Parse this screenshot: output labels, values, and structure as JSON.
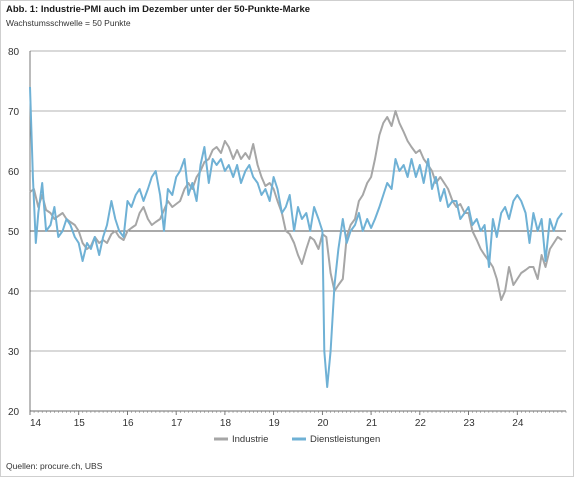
{
  "title": "Abb. 1: Industrie-PMI auch im Dezember unter der 50-Punkte-Marke",
  "subtitle": "Wachstumsschwelle = 50 Punkte",
  "source": "Quellen: procure.ch, UBS",
  "chart_data": {
    "type": "line",
    "title": "Abb. 1: Industrie-PMI auch im Dezember unter der 50-Punkte-Marke",
    "subtitle": "Wachstumsschwelle = 50 Punkte",
    "xlabel": "",
    "ylabel": "",
    "ylim": [
      20,
      80
    ],
    "yticks": [
      20,
      30,
      40,
      50,
      60,
      70,
      80
    ],
    "xlim": [
      2014,
      2025
    ],
    "xticks": [
      "14",
      "15",
      "16",
      "17",
      "18",
      "19",
      "20",
      "21",
      "22",
      "23",
      "24"
    ],
    "grid": "horizontal",
    "legend": "bottom-center",
    "series": [
      {
        "name": "Industrie",
        "color": "#a6a6a6",
        "points": [
          [
            2014.0,
            56.5
          ],
          [
            2014.08,
            57
          ],
          [
            2014.17,
            54
          ],
          [
            2014.25,
            56
          ],
          [
            2014.33,
            53.5
          ],
          [
            2014.42,
            53
          ],
          [
            2014.5,
            52
          ],
          [
            2014.58,
            52.5
          ],
          [
            2014.67,
            53
          ],
          [
            2014.75,
            52
          ],
          [
            2014.83,
            51.5
          ],
          [
            2014.92,
            51
          ],
          [
            2015.0,
            50
          ],
          [
            2015.08,
            48
          ],
          [
            2015.17,
            47
          ],
          [
            2015.25,
            47.5
          ],
          [
            2015.33,
            49
          ],
          [
            2015.42,
            48
          ],
          [
            2015.5,
            48.5
          ],
          [
            2015.58,
            48
          ],
          [
            2015.67,
            49.5
          ],
          [
            2015.75,
            50
          ],
          [
            2015.83,
            49
          ],
          [
            2015.92,
            48.5
          ],
          [
            2016.0,
            50
          ],
          [
            2016.08,
            50.5
          ],
          [
            2016.17,
            51
          ],
          [
            2016.25,
            53
          ],
          [
            2016.33,
            54
          ],
          [
            2016.42,
            52
          ],
          [
            2016.5,
            51
          ],
          [
            2016.58,
            51.5
          ],
          [
            2016.67,
            52
          ],
          [
            2016.75,
            53.5
          ],
          [
            2016.83,
            55
          ],
          [
            2016.92,
            54
          ],
          [
            2017.0,
            54.5
          ],
          [
            2017.08,
            55
          ],
          [
            2017.17,
            57
          ],
          [
            2017.25,
            58
          ],
          [
            2017.33,
            57
          ],
          [
            2017.42,
            59
          ],
          [
            2017.5,
            60
          ],
          [
            2017.58,
            61.5
          ],
          [
            2017.67,
            62
          ],
          [
            2017.75,
            63.5
          ],
          [
            2017.83,
            64
          ],
          [
            2017.92,
            63
          ],
          [
            2018.0,
            65
          ],
          [
            2018.08,
            64
          ],
          [
            2018.17,
            62
          ],
          [
            2018.25,
            63.5
          ],
          [
            2018.33,
            62
          ],
          [
            2018.42,
            63
          ],
          [
            2018.5,
            62
          ],
          [
            2018.58,
            64.5
          ],
          [
            2018.67,
            61
          ],
          [
            2018.75,
            59
          ],
          [
            2018.83,
            57.5
          ],
          [
            2018.92,
            58
          ],
          [
            2019.0,
            57
          ],
          [
            2019.08,
            55
          ],
          [
            2019.17,
            53
          ],
          [
            2019.25,
            50
          ],
          [
            2019.33,
            49.5
          ],
          [
            2019.42,
            48
          ],
          [
            2019.5,
            46
          ],
          [
            2019.58,
            44.5
          ],
          [
            2019.67,
            47
          ],
          [
            2019.75,
            49
          ],
          [
            2019.83,
            48.5
          ],
          [
            2019.92,
            47
          ],
          [
            2020.0,
            49.5
          ],
          [
            2020.08,
            49
          ],
          [
            2020.17,
            43
          ],
          [
            2020.25,
            40
          ],
          [
            2020.33,
            41
          ],
          [
            2020.42,
            42
          ],
          [
            2020.5,
            49
          ],
          [
            2020.58,
            51
          ],
          [
            2020.67,
            52
          ],
          [
            2020.75,
            55
          ],
          [
            2020.83,
            56
          ],
          [
            2020.92,
            58
          ],
          [
            2021.0,
            59
          ],
          [
            2021.08,
            62
          ],
          [
            2021.17,
            66
          ],
          [
            2021.25,
            68
          ],
          [
            2021.33,
            69
          ],
          [
            2021.42,
            67.5
          ],
          [
            2021.5,
            70
          ],
          [
            2021.58,
            68
          ],
          [
            2021.67,
            66.5
          ],
          [
            2021.75,
            65
          ],
          [
            2021.83,
            64
          ],
          [
            2021.92,
            63
          ],
          [
            2022.0,
            63.5
          ],
          [
            2022.08,
            62
          ],
          [
            2022.17,
            61
          ],
          [
            2022.25,
            60
          ],
          [
            2022.33,
            58
          ],
          [
            2022.42,
            59
          ],
          [
            2022.5,
            58
          ],
          [
            2022.58,
            57
          ],
          [
            2022.67,
            55
          ],
          [
            2022.75,
            54
          ],
          [
            2022.83,
            54.5
          ],
          [
            2022.92,
            53
          ],
          [
            2023.0,
            53
          ],
          [
            2023.08,
            50
          ],
          [
            2023.17,
            48.5
          ],
          [
            2023.25,
            47
          ],
          [
            2023.33,
            46
          ],
          [
            2023.42,
            45
          ],
          [
            2023.5,
            44
          ],
          [
            2023.58,
            42
          ],
          [
            2023.67,
            38.5
          ],
          [
            2023.75,
            40
          ],
          [
            2023.83,
            44
          ],
          [
            2023.92,
            41
          ],
          [
            2024.0,
            42
          ],
          [
            2024.08,
            43
          ],
          [
            2024.17,
            43.5
          ],
          [
            2024.25,
            44
          ],
          [
            2024.33,
            44
          ],
          [
            2024.42,
            42
          ],
          [
            2024.5,
            46
          ],
          [
            2024.58,
            44
          ],
          [
            2024.67,
            47
          ],
          [
            2024.75,
            48
          ],
          [
            2024.83,
            49
          ],
          [
            2024.92,
            48.5
          ]
        ]
      },
      {
        "name": "Dienstleistungen",
        "color": "#6fb1d5",
        "points": [
          [
            2014.0,
            74
          ],
          [
            2014.06,
            59
          ],
          [
            2014.12,
            48
          ],
          [
            2014.17,
            53
          ],
          [
            2014.25,
            58
          ],
          [
            2014.33,
            50
          ],
          [
            2014.42,
            51
          ],
          [
            2014.5,
            54
          ],
          [
            2014.58,
            49
          ],
          [
            2014.67,
            50
          ],
          [
            2014.75,
            52
          ],
          [
            2014.83,
            51
          ],
          [
            2014.92,
            49
          ],
          [
            2015.0,
            48
          ],
          [
            2015.08,
            45
          ],
          [
            2015.17,
            48
          ],
          [
            2015.25,
            47
          ],
          [
            2015.33,
            49
          ],
          [
            2015.42,
            46
          ],
          [
            2015.5,
            49
          ],
          [
            2015.58,
            51
          ],
          [
            2015.67,
            55
          ],
          [
            2015.75,
            52
          ],
          [
            2015.83,
            50
          ],
          [
            2015.92,
            49
          ],
          [
            2016.0,
            55
          ],
          [
            2016.08,
            54
          ],
          [
            2016.17,
            56
          ],
          [
            2016.25,
            57
          ],
          [
            2016.33,
            55
          ],
          [
            2016.42,
            57
          ],
          [
            2016.5,
            59
          ],
          [
            2016.58,
            60
          ],
          [
            2016.67,
            56
          ],
          [
            2016.75,
            50
          ],
          [
            2016.83,
            57
          ],
          [
            2016.92,
            56
          ],
          [
            2017.0,
            59
          ],
          [
            2017.08,
            60
          ],
          [
            2017.17,
            62
          ],
          [
            2017.25,
            56
          ],
          [
            2017.33,
            58
          ],
          [
            2017.42,
            55
          ],
          [
            2017.5,
            61
          ],
          [
            2017.58,
            64
          ],
          [
            2017.67,
            58
          ],
          [
            2017.75,
            62
          ],
          [
            2017.83,
            61
          ],
          [
            2017.92,
            62
          ],
          [
            2018.0,
            60
          ],
          [
            2018.08,
            61
          ],
          [
            2018.17,
            59
          ],
          [
            2018.25,
            61
          ],
          [
            2018.33,
            58
          ],
          [
            2018.42,
            60
          ],
          [
            2018.5,
            61
          ],
          [
            2018.58,
            59
          ],
          [
            2018.67,
            58
          ],
          [
            2018.75,
            56
          ],
          [
            2018.83,
            57
          ],
          [
            2018.92,
            55
          ],
          [
            2019.0,
            59
          ],
          [
            2019.08,
            57
          ],
          [
            2019.17,
            53
          ],
          [
            2019.25,
            54
          ],
          [
            2019.33,
            56
          ],
          [
            2019.42,
            50
          ],
          [
            2019.5,
            54
          ],
          [
            2019.58,
            52
          ],
          [
            2019.67,
            53
          ],
          [
            2019.75,
            50
          ],
          [
            2019.83,
            54
          ],
          [
            2019.92,
            52
          ],
          [
            2020.0,
            50
          ],
          [
            2020.04,
            30
          ],
          [
            2020.1,
            24
          ],
          [
            2020.17,
            30
          ],
          [
            2020.25,
            41
          ],
          [
            2020.33,
            47
          ],
          [
            2020.42,
            52
          ],
          [
            2020.5,
            48
          ],
          [
            2020.58,
            50
          ],
          [
            2020.67,
            51
          ],
          [
            2020.75,
            53
          ],
          [
            2020.83,
            50
          ],
          [
            2020.92,
            52
          ],
          [
            2021.0,
            50.5
          ],
          [
            2021.08,
            52
          ],
          [
            2021.17,
            54
          ],
          [
            2021.25,
            56
          ],
          [
            2021.33,
            58
          ],
          [
            2021.42,
            57
          ],
          [
            2021.5,
            62
          ],
          [
            2021.58,
            60
          ],
          [
            2021.67,
            61
          ],
          [
            2021.75,
            59
          ],
          [
            2021.83,
            62
          ],
          [
            2021.92,
            59
          ],
          [
            2022.0,
            61
          ],
          [
            2022.08,
            58
          ],
          [
            2022.17,
            62
          ],
          [
            2022.25,
            57
          ],
          [
            2022.33,
            59
          ],
          [
            2022.42,
            55
          ],
          [
            2022.5,
            57
          ],
          [
            2022.58,
            54
          ],
          [
            2022.67,
            55
          ],
          [
            2022.75,
            55
          ],
          [
            2022.83,
            52
          ],
          [
            2022.92,
            53
          ],
          [
            2023.0,
            54
          ],
          [
            2023.08,
            51
          ],
          [
            2023.17,
            52
          ],
          [
            2023.25,
            50
          ],
          [
            2023.33,
            51
          ],
          [
            2023.42,
            44
          ],
          [
            2023.5,
            52
          ],
          [
            2023.58,
            49
          ],
          [
            2023.67,
            53
          ],
          [
            2023.75,
            54
          ],
          [
            2023.83,
            52
          ],
          [
            2023.92,
            55
          ],
          [
            2024.0,
            56
          ],
          [
            2024.08,
            55
          ],
          [
            2024.17,
            53
          ],
          [
            2024.25,
            48
          ],
          [
            2024.33,
            53
          ],
          [
            2024.42,
            50
          ],
          [
            2024.5,
            52
          ],
          [
            2024.58,
            45
          ],
          [
            2024.67,
            52
          ],
          [
            2024.75,
            50
          ],
          [
            2024.83,
            52
          ],
          [
            2024.92,
            53
          ]
        ]
      }
    ]
  }
}
